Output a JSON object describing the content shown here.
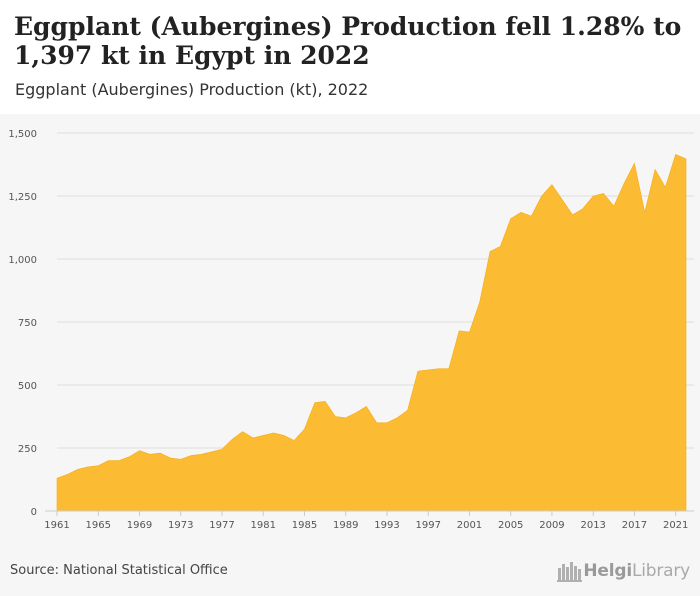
{
  "header": {
    "title": "Eggplant (Aubergines) Production fell 1.28% to 1,397 kt in Egypt in 2022",
    "subtitle": "Eggplant (Aubergines) Production (kt), 2022"
  },
  "footer": {
    "source": "Source: National Statistical Office",
    "logo_part1": "Helgi",
    "logo_part2": "Library"
  },
  "colors": {
    "area_fill": "#fbbb33",
    "area_stroke": "#f5ad14",
    "grid": "#dddddd",
    "text": "#555555"
  },
  "chart_data": {
    "type": "area",
    "x": [
      1961,
      1962,
      1963,
      1964,
      1965,
      1966,
      1967,
      1968,
      1969,
      1970,
      1971,
      1972,
      1973,
      1974,
      1975,
      1976,
      1977,
      1978,
      1979,
      1980,
      1981,
      1982,
      1983,
      1984,
      1985,
      1986,
      1987,
      1988,
      1989,
      1990,
      1991,
      1992,
      1993,
      1994,
      1995,
      1996,
      1997,
      1998,
      1999,
      2000,
      2001,
      2002,
      2003,
      2004,
      2005,
      2006,
      2007,
      2008,
      2009,
      2010,
      2011,
      2012,
      2013,
      2014,
      2015,
      2016,
      2017,
      2018,
      2019,
      2020,
      2021,
      2022
    ],
    "series": [
      {
        "values": [
          130,
          145,
          165,
          175,
          180,
          200,
          200,
          215,
          240,
          225,
          230,
          210,
          205,
          220,
          225,
          235,
          245,
          285,
          315,
          290,
          300,
          310,
          300,
          280,
          325,
          430,
          435,
          375,
          370,
          390,
          415,
          350,
          350,
          370,
          400,
          555,
          560,
          565,
          565,
          715,
          710,
          830,
          1030,
          1050,
          1160,
          1185,
          1170,
          1250,
          1295,
          1235,
          1175,
          1200,
          1250,
          1260,
          1210,
          1300,
          1380,
          1185,
          1355,
          1285,
          1415,
          1397
        ]
      }
    ],
    "xticks": [
      1961,
      1965,
      1969,
      1973,
      1977,
      1981,
      1985,
      1989,
      1993,
      1997,
      2001,
      2005,
      2009,
      2013,
      2017,
      2021
    ],
    "yticks": [
      0,
      250,
      500,
      750,
      1000,
      1250,
      1500
    ],
    "ytick_labels": [
      "0",
      "250",
      "500",
      "750",
      "1,000",
      "1,250",
      "1,500"
    ],
    "ylim": [
      0,
      1500
    ],
    "xlim": [
      1961,
      2022
    ],
    "grid": true,
    "xlabel": "",
    "ylabel": ""
  }
}
